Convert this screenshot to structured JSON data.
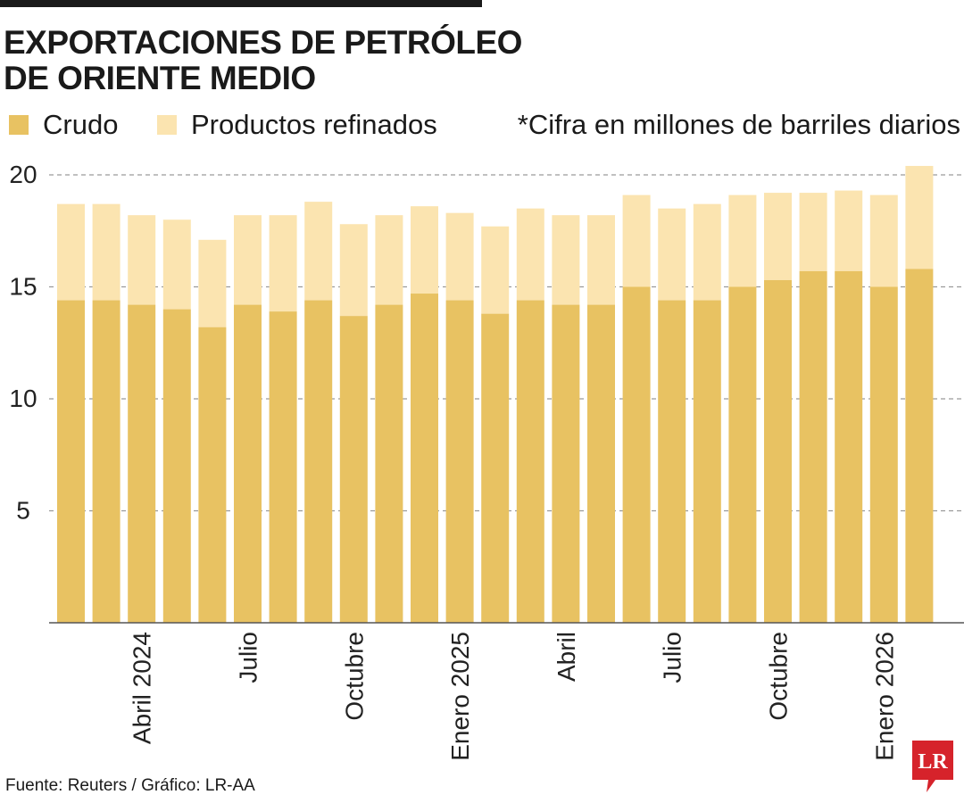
{
  "header": {
    "title_line1": "EXPORTACIONES DE PETRÓLEO",
    "title_line2": "DE ORIENTE MEDIO"
  },
  "legend": {
    "crudo": "Crudo",
    "refinados": "Productos refinados",
    "note": "*Cifra en millones de barriles diarios"
  },
  "colors": {
    "crudo": "#e8c262",
    "refinados": "#fbe4b0",
    "grid": "#9a9a9a",
    "axis": "#555555",
    "logo": "#d6232b"
  },
  "chart_data": {
    "type": "bar",
    "stacked": true,
    "unit": "millones de barriles diarios",
    "categories": [
      "",
      "",
      "Abril 2024",
      "",
      "",
      "Julio",
      "",
      "",
      "Octubre",
      "",
      "",
      "Enero 2025",
      "",
      "",
      "Abril",
      "",
      "",
      "Julio",
      "",
      "",
      "Octubre",
      "",
      "",
      "Enero 2026",
      ""
    ],
    "series": [
      {
        "name": "Crudo",
        "values": [
          14.4,
          14.4,
          14.2,
          14.0,
          13.2,
          14.2,
          13.9,
          14.4,
          13.7,
          14.2,
          14.7,
          14.4,
          13.8,
          14.4,
          14.2,
          14.2,
          15.0,
          14.4,
          14.4,
          15.0,
          15.3,
          15.7,
          15.7,
          15.0,
          15.8
        ]
      },
      {
        "name": "Productos refinados",
        "values": [
          4.3,
          4.3,
          4.0,
          4.0,
          3.9,
          4.0,
          4.3,
          4.4,
          4.1,
          4.0,
          3.9,
          3.9,
          3.9,
          4.1,
          4.0,
          4.0,
          4.1,
          4.1,
          4.3,
          4.1,
          3.9,
          3.5,
          3.6,
          4.1,
          4.6
        ]
      }
    ],
    "yticks": [
      5,
      10,
      15,
      20
    ],
    "ylim": [
      0,
      20.5
    ],
    "xlabel": "",
    "ylabel": "",
    "grid": true
  },
  "footer": {
    "source": "Fuente: Reuters / Gráfico: LR-AA",
    "logo_text": "LR"
  }
}
